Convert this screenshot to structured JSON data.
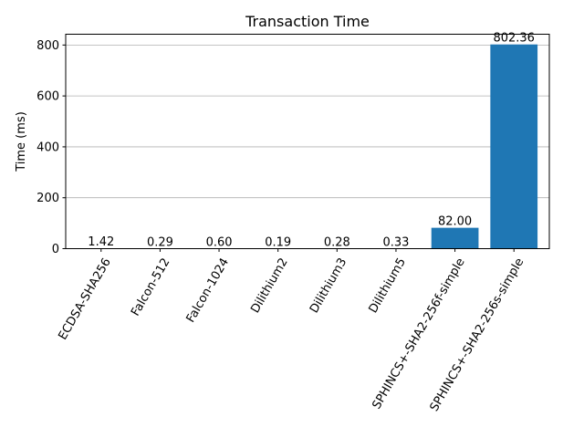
{
  "chart_data": {
    "type": "bar",
    "title": "Transaction Time",
    "xlabel": "",
    "ylabel": "Time (ms)",
    "categories": [
      "ECDSA-SHA256",
      "Falcon-512",
      "Falcon-1024",
      "Dilithium2",
      "Dilithium3",
      "Dilithium5",
      "SPHINCS+-SHA2-256f-simple",
      "SPHINCS+-SHA2-256s-simple"
    ],
    "values": [
      1.42,
      0.29,
      0.6,
      0.19,
      0.28,
      0.33,
      82.0,
      802.36
    ],
    "data_labels": [
      "1.42",
      "0.29",
      "0.60",
      "0.19",
      "0.28",
      "0.33",
      "82.00",
      "802.36"
    ],
    "ylim": [
      0,
      842.478
    ],
    "yticks": [
      0,
      200,
      400,
      600,
      800
    ],
    "ytick_labels": [
      "0",
      "200",
      "400",
      "600",
      "800"
    ],
    "xtick_rotation_deg": 60,
    "grid": "y",
    "bar_color": "#1f77b4"
  }
}
